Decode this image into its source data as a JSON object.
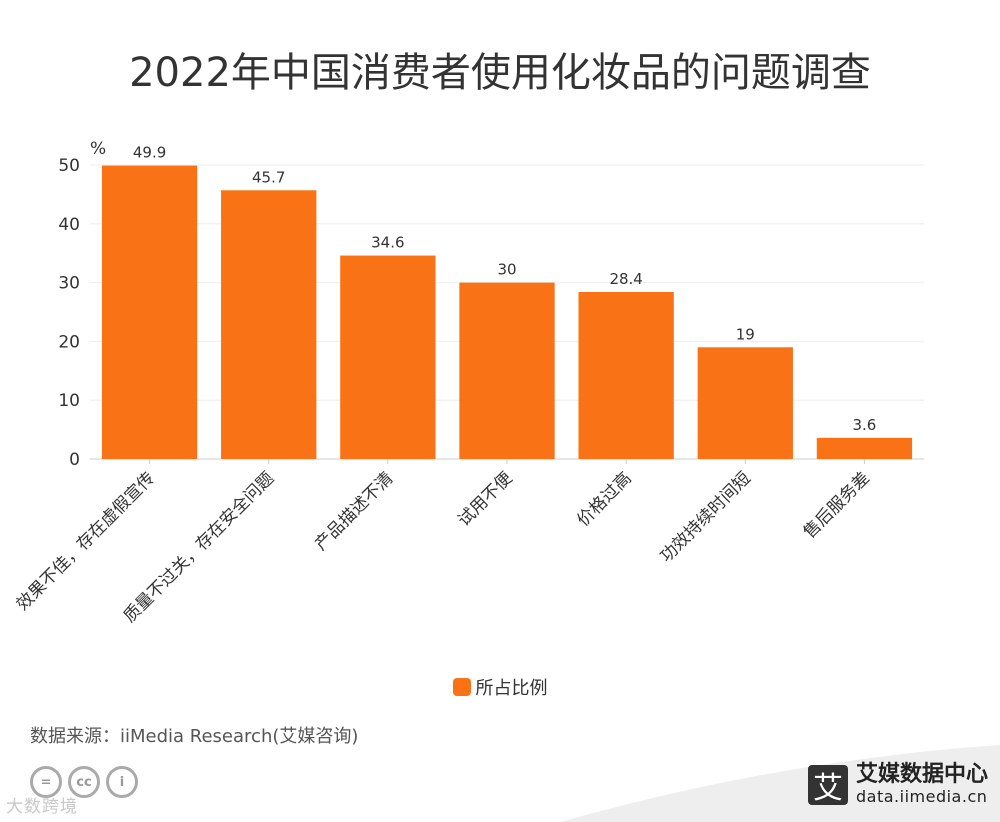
{
  "colors": {
    "bar": "#F97316",
    "axis": "#cccccc",
    "grid": "#eeeeee",
    "text": "#333333"
  },
  "chart_data": {
    "type": "bar",
    "title": "2022年中国消费者使用化妆品的问题调查",
    "y_unit": "%",
    "ylim": [
      0,
      50
    ],
    "yticks": [
      0,
      10,
      20,
      30,
      40,
      50
    ],
    "grid": true,
    "legend_position": "bottom-center",
    "categories": [
      "效果不佳，存在虚假宣传",
      "质量不过关，存在安全问题",
      "产品描述不清",
      "试用不便",
      "价格过高",
      "功效持续时间短",
      "售后服务差"
    ],
    "series": [
      {
        "name": "所占比例",
        "values": [
          49.9,
          45.7,
          34.6,
          30,
          28.4,
          19,
          3.6
        ]
      }
    ]
  },
  "source_text": "数据来源：iiMedia Research(艾媒咨询)",
  "license_icons": [
    "=",
    "cc",
    "i"
  ],
  "watermark": "大数跨境",
  "brand": {
    "name": "艾媒数据中心",
    "url": "data.iimedia.cn",
    "logo_char": "艾"
  }
}
